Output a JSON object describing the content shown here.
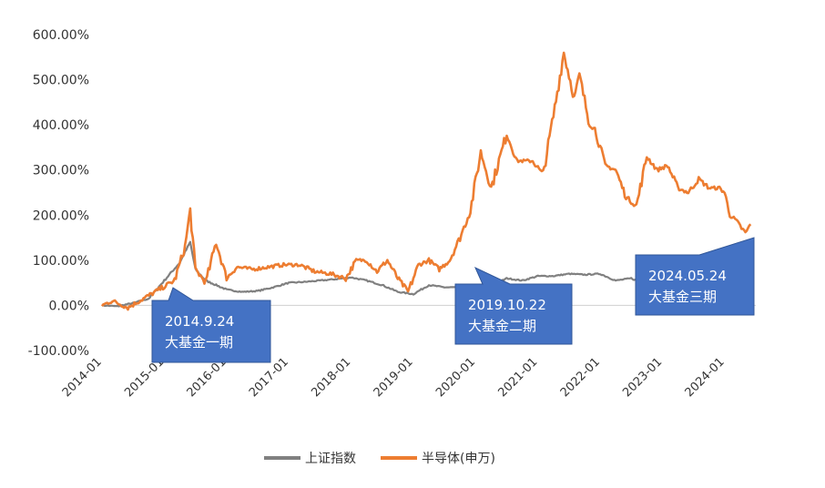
{
  "chart_data": {
    "type": "line",
    "title": "",
    "xlabel": "",
    "ylabel": "",
    "ylim": [
      -100,
      600
    ],
    "xlim": [
      "2014-01",
      "2024-07"
    ],
    "grid": false,
    "legend_position": "bottom",
    "y_ticks": [
      "600.00%",
      "500.00%",
      "400.00%",
      "300.00%",
      "200.00%",
      "100.00%",
      "0.00%",
      "-100.00%"
    ],
    "x_ticks": [
      "2014-01",
      "2015-01",
      "2016-01",
      "2017-01",
      "2018-01",
      "2019-01",
      "2020-01",
      "2021-01",
      "2022-01",
      "2023-01",
      "2024-01"
    ],
    "legend": [
      "上证指数",
      "半导体(申万)"
    ],
    "colors": {
      "上证指数": "#808080",
      "半导体(申万)": "#ED7D31",
      "callout": "#4472C4"
    },
    "series": [
      {
        "name": "上证指数",
        "x": [
          "2014-01",
          "2014-04",
          "2014-07",
          "2014-10",
          "2015-01",
          "2015-04",
          "2015-06",
          "2015-07",
          "2015-09",
          "2016-01",
          "2016-04",
          "2016-07",
          "2016-10",
          "2017-01",
          "2017-04",
          "2017-07",
          "2017-10",
          "2018-01",
          "2018-04",
          "2018-07",
          "2018-10",
          "2019-01",
          "2019-04",
          "2019-07",
          "2019-10",
          "2020-01",
          "2020-04",
          "2020-07",
          "2020-10",
          "2021-01",
          "2021-04",
          "2021-07",
          "2021-10",
          "2022-01",
          "2022-04",
          "2022-07",
          "2022-10",
          "2023-01",
          "2023-04",
          "2023-07",
          "2023-10",
          "2024-01",
          "2024-04",
          "2024-06"
        ],
        "values": [
          0,
          -2,
          5,
          15,
          55,
          95,
          140,
          80,
          55,
          35,
          30,
          32,
          40,
          50,
          52,
          55,
          58,
          62,
          55,
          45,
          30,
          25,
          45,
          40,
          40,
          45,
          42,
          60,
          55,
          65,
          65,
          70,
          68,
          70,
          55,
          60,
          45,
          55,
          58,
          50,
          45,
          40,
          50,
          45
        ]
      },
      {
        "name": "半导体(申万)",
        "x": [
          "2014-01",
          "2014-03",
          "2014-06",
          "2014-09",
          "2014-12",
          "2015-03",
          "2015-05",
          "2015-06",
          "2015-07",
          "2015-09",
          "2015-11",
          "2016-01",
          "2016-03",
          "2016-06",
          "2016-09",
          "2016-12",
          "2017-03",
          "2017-06",
          "2017-09",
          "2017-12",
          "2018-02",
          "2018-04",
          "2018-06",
          "2018-08",
          "2018-10",
          "2018-12",
          "2019-02",
          "2019-04",
          "2019-06",
          "2019-08",
          "2019-10",
          "2019-12",
          "2020-02",
          "2020-04",
          "2020-07",
          "2020-09",
          "2020-12",
          "2021-02",
          "2021-04",
          "2021-06",
          "2021-08",
          "2021-09",
          "2021-11",
          "2021-12",
          "2022-02",
          "2022-04",
          "2022-06",
          "2022-08",
          "2022-10",
          "2022-12",
          "2023-02",
          "2023-04",
          "2023-06",
          "2023-08",
          "2023-10",
          "2023-12",
          "2024-01",
          "2024-02",
          "2024-03",
          "2024-05",
          "2024-06"
        ],
        "values": [
          0,
          10,
          -5,
          15,
          35,
          55,
          130,
          210,
          80,
          50,
          140,
          60,
          85,
          80,
          85,
          90,
          90,
          75,
          70,
          60,
          100,
          100,
          75,
          100,
          60,
          30,
          90,
          100,
          80,
          100,
          150,
          210,
          340,
          260,
          380,
          320,
          320,
          290,
          420,
          560,
          460,
          510,
          400,
          390,
          310,
          300,
          240,
          220,
          330,
          300,
          310,
          260,
          250,
          280,
          260,
          260,
          250,
          200,
          190,
          160,
          180
        ]
      }
    ],
    "annotations": [
      {
        "date": "2014-09",
        "line1": "2014.9.24",
        "line2": "大基金一期"
      },
      {
        "date": "2019-10",
        "line1": "2019.10.22",
        "line2": "大基金二期"
      },
      {
        "date": "2024-05",
        "line1": "2024.05.24",
        "line2": "大基金三期"
      }
    ]
  }
}
